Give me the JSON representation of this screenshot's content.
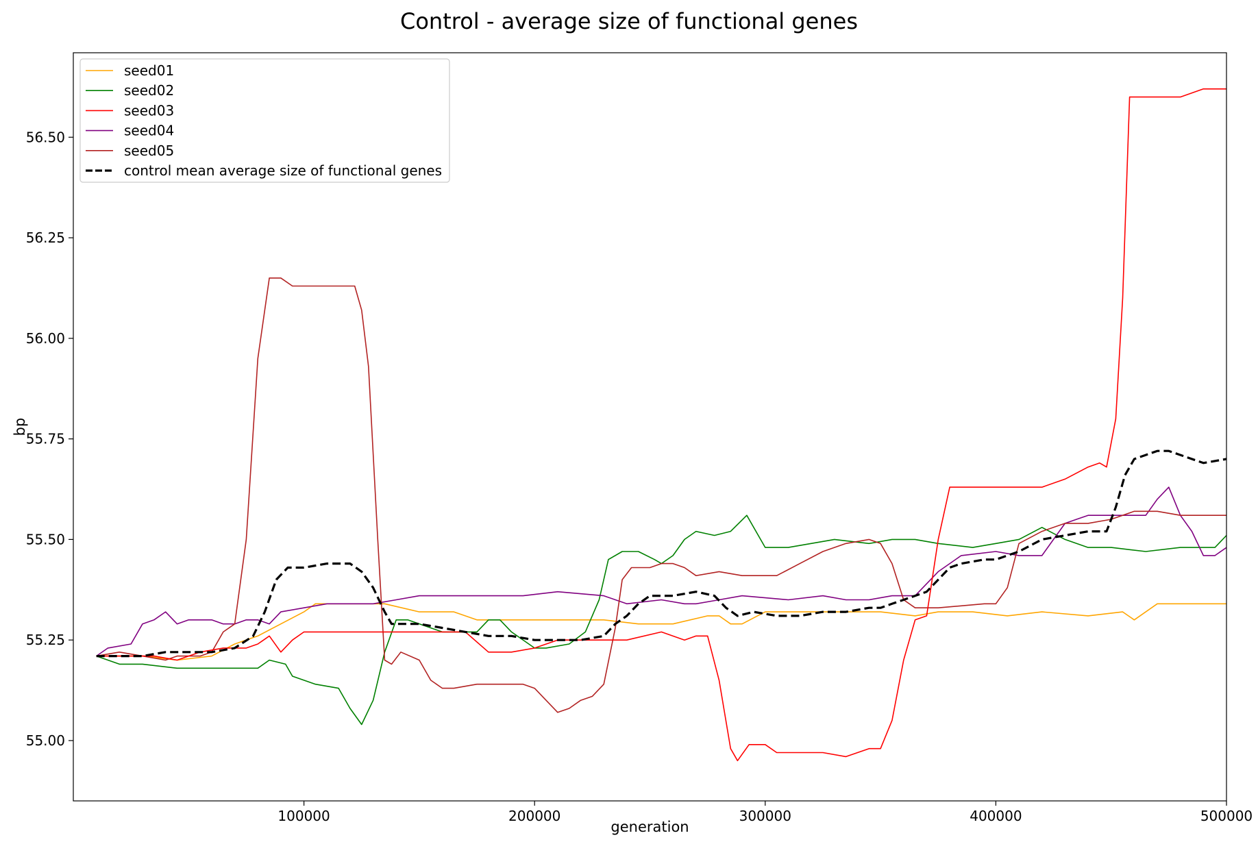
{
  "chart_data": {
    "type": "line",
    "title": "Control - average size of functional genes",
    "xlabel": "generation",
    "ylabel": "bp",
    "xlim": [
      0,
      500000
    ],
    "ylim": [
      54.85,
      56.71
    ],
    "xticks": [
      100000,
      200000,
      300000,
      400000,
      500000
    ],
    "xtick_labels": [
      "100000",
      "200000",
      "300000",
      "400000",
      "500000"
    ],
    "yticks": [
      55.0,
      55.25,
      55.5,
      55.75,
      56.0,
      56.25,
      56.5
    ],
    "ytick_labels": [
      "55.00",
      "55.25",
      "55.50",
      "55.75",
      "56.00",
      "56.25",
      "56.50"
    ],
    "grid": false,
    "legend_position": "upper-left",
    "series": [
      {
        "name": "seed01",
        "color": "#ffa500",
        "style": "solid",
        "x": [
          10000,
          30000,
          45000,
          60000,
          70000,
          80000,
          90000,
          100000,
          105000,
          120000,
          135000,
          150000,
          165000,
          175000,
          190000,
          210000,
          230000,
          245000,
          260000,
          275000,
          280000,
          285000,
          290000,
          300000,
          320000,
          340000,
          350000,
          365000,
          375000,
          390000,
          405000,
          420000,
          440000,
          455000,
          460000,
          470000,
          500000
        ],
        "values": [
          55.21,
          55.21,
          55.2,
          55.21,
          55.24,
          55.26,
          55.29,
          55.32,
          55.34,
          55.34,
          55.34,
          55.32,
          55.32,
          55.3,
          55.3,
          55.3,
          55.3,
          55.29,
          55.29,
          55.31,
          55.31,
          55.29,
          55.29,
          55.32,
          55.32,
          55.32,
          55.32,
          55.31,
          55.32,
          55.32,
          55.31,
          55.32,
          55.31,
          55.32,
          55.3,
          55.34,
          55.34
        ]
      },
      {
        "name": "seed02",
        "color": "#008000",
        "style": "solid",
        "x": [
          10000,
          20000,
          30000,
          45000,
          60000,
          70000,
          80000,
          85000,
          92000,
          95000,
          105000,
          115000,
          120000,
          125000,
          130000,
          135000,
          140000,
          145000,
          155000,
          160000,
          175000,
          180000,
          185000,
          190000,
          200000,
          205000,
          215000,
          222000,
          228000,
          232000,
          238000,
          245000,
          252000,
          255000,
          260000,
          265000,
          270000,
          278000,
          285000,
          292000,
          300000,
          310000,
          330000,
          345000,
          355000,
          365000,
          375000,
          390000,
          400000,
          410000,
          420000,
          430000,
          440000,
          450000,
          465000,
          480000,
          495000,
          500000
        ],
        "values": [
          55.21,
          55.19,
          55.19,
          55.18,
          55.18,
          55.18,
          55.18,
          55.2,
          55.19,
          55.16,
          55.14,
          55.13,
          55.08,
          55.04,
          55.1,
          55.22,
          55.3,
          55.3,
          55.28,
          55.27,
          55.27,
          55.3,
          55.3,
          55.27,
          55.23,
          55.23,
          55.24,
          55.27,
          55.35,
          55.45,
          55.47,
          55.47,
          55.45,
          55.44,
          55.46,
          55.5,
          55.52,
          55.51,
          55.52,
          55.56,
          55.48,
          55.48,
          55.5,
          55.49,
          55.5,
          55.5,
          55.49,
          55.48,
          55.49,
          55.5,
          55.53,
          55.5,
          55.48,
          55.48,
          55.47,
          55.48,
          55.48,
          55.51
        ]
      },
      {
        "name": "seed03",
        "color": "#ff0000",
        "style": "solid",
        "x": [
          10000,
          20000,
          35000,
          45000,
          55000,
          65000,
          75000,
          80000,
          85000,
          90000,
          95000,
          100000,
          110000,
          125000,
          135000,
          145000,
          155000,
          170000,
          180000,
          190000,
          200000,
          210000,
          230000,
          240000,
          255000,
          265000,
          270000,
          275000,
          280000,
          285000,
          288000,
          293000,
          300000,
          305000,
          310000,
          325000,
          335000,
          345000,
          350000,
          355000,
          360000,
          365000,
          370000,
          375000,
          380000,
          395000,
          405000,
          420000,
          430000,
          440000,
          445000,
          448000,
          452000,
          455000,
          458000,
          465000,
          470000,
          480000,
          490000,
          500000
        ],
        "values": [
          55.21,
          55.21,
          55.21,
          55.2,
          55.22,
          55.23,
          55.23,
          55.24,
          55.26,
          55.22,
          55.25,
          55.27,
          55.27,
          55.27,
          55.27,
          55.27,
          55.27,
          55.27,
          55.22,
          55.22,
          55.23,
          55.25,
          55.25,
          55.25,
          55.27,
          55.25,
          55.26,
          55.26,
          55.15,
          54.98,
          54.95,
          54.99,
          54.99,
          54.97,
          54.97,
          54.97,
          54.96,
          54.98,
          54.98,
          55.05,
          55.2,
          55.3,
          55.31,
          55.5,
          55.63,
          55.63,
          55.63,
          55.63,
          55.65,
          55.68,
          55.69,
          55.68,
          55.8,
          56.1,
          56.6,
          56.6,
          56.6,
          56.6,
          56.62,
          56.62
        ]
      },
      {
        "name": "seed04",
        "color": "#800080",
        "style": "solid",
        "x": [
          10000,
          15000,
          25000,
          30000,
          35000,
          40000,
          45000,
          50000,
          60000,
          65000,
          70000,
          75000,
          80000,
          85000,
          90000,
          100000,
          110000,
          120000,
          130000,
          140000,
          150000,
          160000,
          175000,
          195000,
          210000,
          230000,
          240000,
          255000,
          265000,
          270000,
          280000,
          290000,
          310000,
          325000,
          335000,
          345000,
          355000,
          365000,
          375000,
          385000,
          400000,
          410000,
          420000,
          425000,
          430000,
          435000,
          440000,
          445000,
          455000,
          465000,
          470000,
          475000,
          480000,
          485000,
          490000,
          495000,
          500000
        ],
        "values": [
          55.21,
          55.23,
          55.24,
          55.29,
          55.3,
          55.32,
          55.29,
          55.3,
          55.3,
          55.29,
          55.29,
          55.3,
          55.3,
          55.29,
          55.32,
          55.33,
          55.34,
          55.34,
          55.34,
          55.35,
          55.36,
          55.36,
          55.36,
          55.36,
          55.37,
          55.36,
          55.34,
          55.35,
          55.34,
          55.34,
          55.35,
          55.36,
          55.35,
          55.36,
          55.35,
          55.35,
          55.36,
          55.36,
          55.42,
          55.46,
          55.47,
          55.46,
          55.46,
          55.5,
          55.54,
          55.55,
          55.56,
          55.56,
          55.56,
          55.56,
          55.6,
          55.63,
          55.56,
          55.52,
          55.46,
          55.46,
          55.48
        ]
      },
      {
        "name": "seed05",
        "color": "#b22222",
        "style": "solid",
        "x": [
          10000,
          20000,
          30000,
          40000,
          45000,
          55000,
          60000,
          65000,
          70000,
          75000,
          80000,
          85000,
          90000,
          95000,
          100000,
          105000,
          115000,
          122000,
          125000,
          128000,
          132000,
          135000,
          138000,
          142000,
          150000,
          155000,
          160000,
          165000,
          175000,
          195000,
          200000,
          210000,
          215000,
          220000,
          225000,
          230000,
          235000,
          238000,
          242000,
          250000,
          255000,
          260000,
          265000,
          270000,
          280000,
          290000,
          300000,
          305000,
          315000,
          325000,
          335000,
          345000,
          350000,
          355000,
          360000,
          365000,
          375000,
          395000,
          400000,
          405000,
          410000,
          420000,
          430000,
          440000,
          450000,
          460000,
          470000,
          480000,
          500000
        ],
        "values": [
          55.21,
          55.22,
          55.21,
          55.2,
          55.21,
          55.21,
          55.22,
          55.27,
          55.29,
          55.5,
          55.95,
          56.15,
          56.15,
          56.13,
          56.13,
          56.13,
          56.13,
          56.13,
          56.07,
          55.93,
          55.5,
          55.2,
          55.19,
          55.22,
          55.2,
          55.15,
          55.13,
          55.13,
          55.14,
          55.14,
          55.13,
          55.07,
          55.08,
          55.1,
          55.11,
          55.14,
          55.28,
          55.4,
          55.43,
          55.43,
          55.44,
          55.44,
          55.43,
          55.41,
          55.42,
          55.41,
          55.41,
          55.41,
          55.44,
          55.47,
          55.49,
          55.5,
          55.49,
          55.44,
          55.35,
          55.33,
          55.33,
          55.34,
          55.34,
          55.38,
          55.49,
          55.52,
          55.54,
          55.54,
          55.55,
          55.57,
          55.57,
          55.56,
          55.56
        ]
      },
      {
        "name": "control mean average size of functional genes",
        "color": "#000000",
        "style": "dashed",
        "x": [
          10000,
          20000,
          30000,
          40000,
          50000,
          60000,
          70000,
          78000,
          83000,
          88000,
          93000,
          100000,
          110000,
          120000,
          125000,
          130000,
          135000,
          138000,
          142000,
          150000,
          160000,
          170000,
          180000,
          190000,
          200000,
          210000,
          220000,
          230000,
          235000,
          240000,
          245000,
          250000,
          260000,
          270000,
          278000,
          283000,
          288000,
          295000,
          305000,
          315000,
          325000,
          335000,
          345000,
          350000,
          355000,
          360000,
          365000,
          370000,
          375000,
          380000,
          385000,
          395000,
          400000,
          405000,
          410000,
          420000,
          430000,
          440000,
          448000,
          452000,
          456000,
          460000,
          465000,
          470000,
          475000,
          480000,
          490000,
          500000
        ],
        "values": [
          55.21,
          55.21,
          55.21,
          55.22,
          55.22,
          55.22,
          55.23,
          55.26,
          55.32,
          55.4,
          55.43,
          55.43,
          55.44,
          55.44,
          55.42,
          55.38,
          55.32,
          55.29,
          55.29,
          55.29,
          55.28,
          55.27,
          55.26,
          55.26,
          55.25,
          55.25,
          55.25,
          55.26,
          55.29,
          55.31,
          55.34,
          55.36,
          55.36,
          55.37,
          55.36,
          55.33,
          55.31,
          55.32,
          55.31,
          55.31,
          55.32,
          55.32,
          55.33,
          55.33,
          55.34,
          55.35,
          55.36,
          55.37,
          55.4,
          55.43,
          55.44,
          55.45,
          55.45,
          55.46,
          55.47,
          55.5,
          55.51,
          55.52,
          55.52,
          55.58,
          55.66,
          55.7,
          55.71,
          55.72,
          55.72,
          55.71,
          55.69,
          55.7
        ]
      }
    ]
  }
}
